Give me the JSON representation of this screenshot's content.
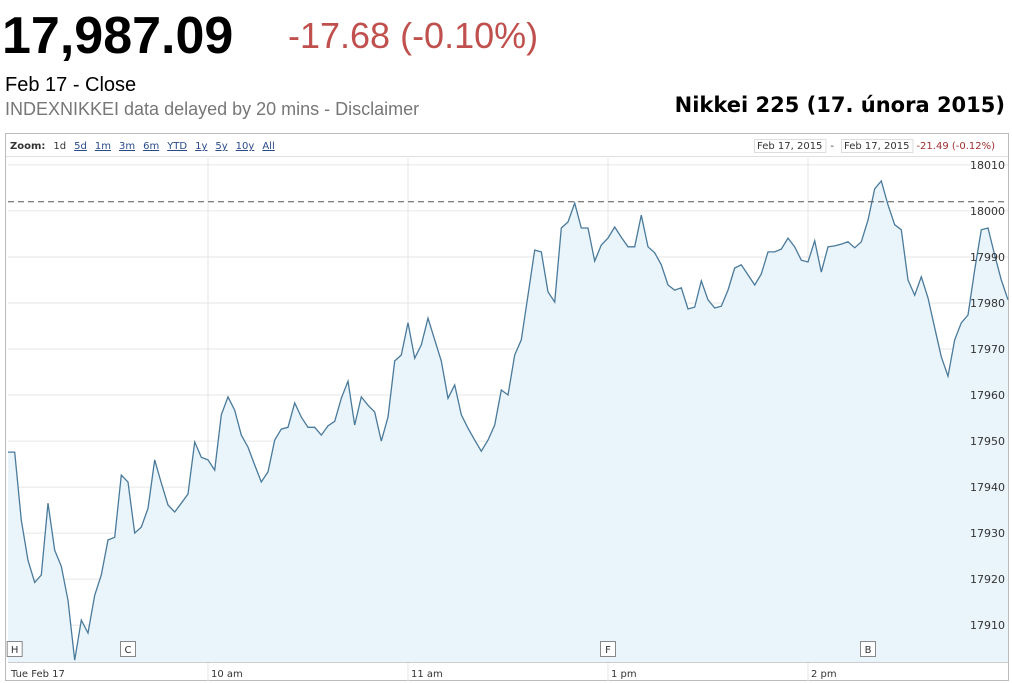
{
  "header": {
    "price": "17,987.09",
    "change": "-17.68 (-0.10%)",
    "date_label": "Feb 17 - Close",
    "source_note": "INDEXNIKKEI data delayed by 20 mins - Disclaimer",
    "caption": "Nikkei 225 (17. února 2015)"
  },
  "toolbar": {
    "zoom_label": "Zoom:",
    "zoom_links": [
      "1d",
      "5d",
      "1m",
      "3m",
      "6m",
      "YTD",
      "1y",
      "5y",
      "10y",
      "All"
    ],
    "range_start": "Feb 17, 2015",
    "range_separator": "-",
    "range_end": "Feb 17, 2015",
    "range_change": "-21.49 (-0.12%)"
  },
  "chart_data": {
    "type": "line",
    "x": [
      0,
      2,
      4,
      6,
      8,
      10,
      12,
      14,
      16,
      18,
      20,
      22,
      24,
      26,
      28,
      30,
      32,
      34,
      36,
      38,
      40,
      42,
      44,
      46,
      48,
      50,
      52,
      54,
      56,
      58,
      60,
      62,
      64,
      66,
      68,
      70,
      72,
      74,
      76,
      78,
      80,
      82,
      84,
      86,
      88,
      90,
      92,
      94,
      96,
      98,
      100,
      102,
      104,
      106,
      108,
      110,
      112,
      114,
      116,
      118,
      120,
      122,
      124,
      126,
      128,
      130,
      132,
      134,
      136,
      138,
      140,
      142,
      144,
      146,
      148,
      150,
      152,
      154,
      156,
      158,
      160,
      162,
      164,
      166,
      168,
      170,
      172,
      174,
      176,
      178,
      180,
      182,
      184,
      186,
      188,
      190,
      192,
      194,
      196,
      198,
      200,
      202,
      204,
      206,
      208,
      210,
      212,
      214,
      216,
      218,
      220,
      222,
      224,
      226,
      228,
      230,
      232,
      234,
      236,
      238,
      240,
      242,
      244,
      246,
      248,
      250,
      252,
      254,
      256,
      258,
      260,
      262,
      264,
      266,
      268,
      270,
      272,
      274,
      276,
      278,
      280,
      282,
      284,
      286,
      288,
      290,
      292,
      294,
      296,
      298,
      300
    ],
    "series": [
      {
        "color": "#4a7a9b",
        "fill": "#eaf4fb",
        "values": [
          17947.6,
          17947.6,
          17932.8,
          17924.1,
          17919.3,
          17920.9,
          17936.5,
          17926.3,
          17922.8,
          17915.4,
          17902.4,
          17911.1,
          17908.3,
          17916.5,
          17920.9,
          17928.5,
          17929.1,
          17942.6,
          17941.1,
          17930.0,
          17931.3,
          17935.4,
          17945.9,
          17940.9,
          17936.1,
          17934.6,
          17936.5,
          17938.5,
          17949.8,
          17946.5,
          17945.9,
          17943.7,
          17955.7,
          17959.6,
          17956.7,
          17951.3,
          17948.7,
          17944.8,
          17941.1,
          17943.3,
          17950.2,
          17952.6,
          17953.0,
          17958.3,
          17955.2,
          17953.0,
          17953.0,
          17951.3,
          17953.3,
          17954.3,
          17959.3,
          17963.0,
          17953.5,
          17959.6,
          17957.8,
          17956.3,
          17950.0,
          17955.2,
          17967.4,
          17968.7,
          17975.7,
          17968.0,
          17970.9,
          17976.7,
          17972.0,
          17967.4,
          17959.3,
          17962.2,
          17955.7,
          17952.8,
          17950.2,
          17947.8,
          17950.2,
          17953.5,
          17961.1,
          17960.0,
          17968.7,
          17972.0,
          17981.7,
          17991.5,
          17991.1,
          17982.4,
          17980.2,
          17996.3,
          17997.6,
          18001.7,
          17996.3,
          17996.3,
          17989.1,
          17992.6,
          17994.1,
          17996.5,
          17994.3,
          17992.2,
          17992.2,
          17999.1,
          17992.2,
          17990.9,
          17988.3,
          17983.9,
          17982.8,
          17983.3,
          17978.7,
          17979.1,
          17984.8,
          17980.7,
          17978.9,
          17979.3,
          17982.8,
          17987.6,
          17988.3,
          17986.1,
          17983.9,
          17986.3,
          17991.1,
          17991.1,
          17991.7,
          17994.1,
          17992.2,
          17989.3,
          17988.9,
          17993.5,
          17986.7,
          17992.2,
          17992.4,
          17992.8,
          17993.3,
          17992.0,
          17993.3,
          17998.0,
          18004.8,
          18006.5,
          18001.3,
          17997.0,
          17995.9,
          17985.0,
          17981.7,
          17985.7,
          17981.1,
          17974.6,
          17968.3,
          17964.1,
          17972.0,
          17975.7,
          17977.4,
          17987.2,
          17995.9,
          17996.3,
          17990.4,
          17985.0,
          17980.7
        ]
      }
    ],
    "xlim": [
      0,
      300
    ],
    "ylim": [
      17902,
      18011.5
    ],
    "xticks": [
      {
        "value": 0,
        "label": "Tue Feb 17"
      },
      {
        "value": 60,
        "label": "10 am"
      },
      {
        "value": 120,
        "label": "11 am"
      },
      {
        "value": 180,
        "label": "1 pm"
      },
      {
        "value": 240,
        "label": "2 pm"
      }
    ],
    "yticks": [
      17910,
      17920,
      17930,
      17940,
      17950,
      17960,
      17970,
      17980,
      17990,
      18000,
      18010
    ],
    "grid": true,
    "reference_line": 18002,
    "flags": [
      {
        "x": 2,
        "label": "H"
      },
      {
        "x": 36,
        "label": "C"
      },
      {
        "x": 180,
        "label": "F"
      },
      {
        "x": 258,
        "label": "B"
      }
    ]
  }
}
